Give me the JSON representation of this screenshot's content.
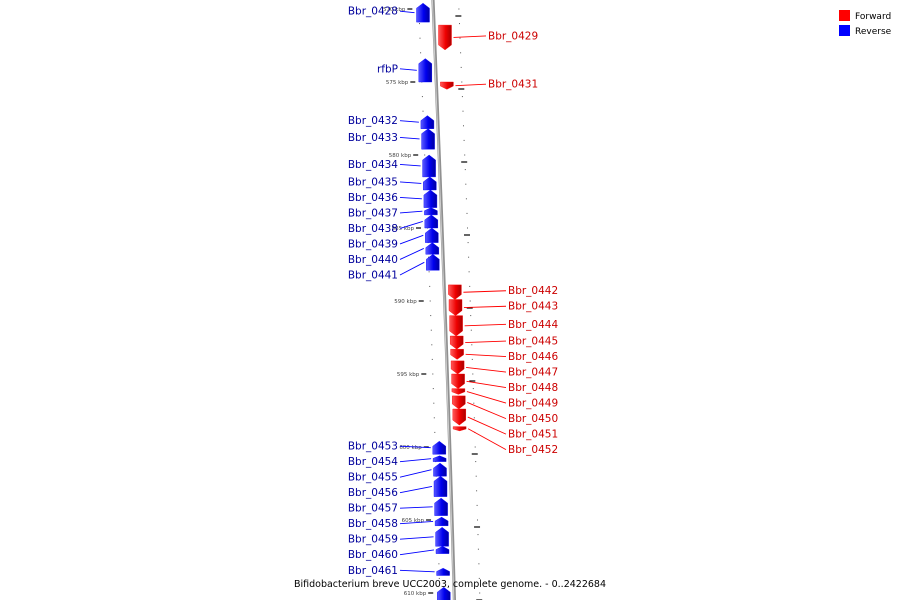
{
  "legend": {
    "forward": {
      "label": "Forward",
      "color": "#ff0000"
    },
    "reverse": {
      "label": "Reverse",
      "color": "#0000ff"
    }
  },
  "caption": "Bifidobacterium breve UCC2003, complete genome. - 0..2422684",
  "ticks": [
    {
      "kbp": 570,
      "label": "570 kbp"
    },
    {
      "kbp": 575,
      "label": "575 kbp"
    },
    {
      "kbp": 580,
      "label": "580 kbp"
    },
    {
      "kbp": 585,
      "label": "585 kbp"
    },
    {
      "kbp": 590,
      "label": "590 kbp"
    },
    {
      "kbp": 595,
      "label": "595 kbp"
    },
    {
      "kbp": 600,
      "label": "600 kbp"
    },
    {
      "kbp": 605,
      "label": "605 kbp"
    },
    {
      "kbp": 610,
      "label": "610 kbp"
    }
  ],
  "genes": [
    {
      "name": "Bbr_0428",
      "strand": "reverse",
      "start": 569.6,
      "end": 570.9
    },
    {
      "name": "Bbr_0429",
      "strand": "forward",
      "start": 571.1,
      "end": 572.8
    },
    {
      "name": "rfbP",
      "strand": "reverse",
      "start": 573.4,
      "end": 575.0
    },
    {
      "name": "Bbr_0431",
      "strand": "forward",
      "start": 575.0,
      "end": 575.5
    },
    {
      "name": "Bbr_0432",
      "strand": "reverse",
      "start": 577.3,
      "end": 578.2
    },
    {
      "name": "Bbr_0433",
      "strand": "reverse",
      "start": 578.2,
      "end": 579.6
    },
    {
      "name": "Bbr_0434",
      "strand": "reverse",
      "start": 580.0,
      "end": 581.5
    },
    {
      "name": "Bbr_0435",
      "strand": "reverse",
      "start": 581.5,
      "end": 582.4
    },
    {
      "name": "Bbr_0436",
      "strand": "reverse",
      "start": 582.4,
      "end": 583.6
    },
    {
      "name": "Bbr_0437",
      "strand": "reverse",
      "start": 583.6,
      "end": 584.1
    },
    {
      "name": "Bbr_0438",
      "strand": "reverse",
      "start": 584.1,
      "end": 585.0
    },
    {
      "name": "Bbr_0439",
      "strand": "reverse",
      "start": 585.0,
      "end": 586.0
    },
    {
      "name": "Bbr_0440",
      "strand": "reverse",
      "start": 586.0,
      "end": 586.8
    },
    {
      "name": "Bbr_0441",
      "strand": "reverse",
      "start": 586.8,
      "end": 587.9
    },
    {
      "name": "Bbr_0442",
      "strand": "forward",
      "start": 588.9,
      "end": 589.9
    },
    {
      "name": "Bbr_0443",
      "strand": "forward",
      "start": 589.9,
      "end": 591.0
    },
    {
      "name": "Bbr_0444",
      "strand": "forward",
      "start": 591.0,
      "end": 592.4
    },
    {
      "name": "Bbr_0445",
      "strand": "forward",
      "start": 592.4,
      "end": 593.3
    },
    {
      "name": "Bbr_0446",
      "strand": "forward",
      "start": 593.3,
      "end": 594.0
    },
    {
      "name": "Bbr_0447",
      "strand": "forward",
      "start": 594.1,
      "end": 595.0
    },
    {
      "name": "Bbr_0448",
      "strand": "forward",
      "start": 595.0,
      "end": 596.0
    },
    {
      "name": "Bbr_0449",
      "strand": "forward",
      "start": 596.0,
      "end": 596.4
    },
    {
      "name": "Bbr_0450",
      "strand": "forward",
      "start": 596.5,
      "end": 597.4
    },
    {
      "name": "Bbr_0451",
      "strand": "forward",
      "start": 597.4,
      "end": 598.5
    },
    {
      "name": "Bbr_0452",
      "strand": "forward",
      "start": 598.6,
      "end": 598.9
    },
    {
      "name": "Bbr_0453",
      "strand": "reverse",
      "start": 599.6,
      "end": 600.5
    },
    {
      "name": "Bbr_0454",
      "strand": "reverse",
      "start": 600.6,
      "end": 601.0
    },
    {
      "name": "Bbr_0455",
      "strand": "reverse",
      "start": 601.1,
      "end": 602.0
    },
    {
      "name": "Bbr_0456",
      "strand": "reverse",
      "start": 602.0,
      "end": 603.4
    },
    {
      "name": "Bbr_0457",
      "strand": "reverse",
      "start": 603.5,
      "end": 604.7
    },
    {
      "name": "Bbr_0458",
      "strand": "reverse",
      "start": 604.8,
      "end": 605.4
    },
    {
      "name": "Bbr_0459",
      "strand": "reverse",
      "start": 605.5,
      "end": 606.8
    },
    {
      "name": "Bbr_0460",
      "strand": "reverse",
      "start": 606.8,
      "end": 607.3
    },
    {
      "name": "Bbr_0461",
      "strand": "reverse",
      "start": 608.3,
      "end": 608.8
    },
    {
      "name": "",
      "strand": "reverse",
      "start": 609.6,
      "end": 610.6
    }
  ]
}
